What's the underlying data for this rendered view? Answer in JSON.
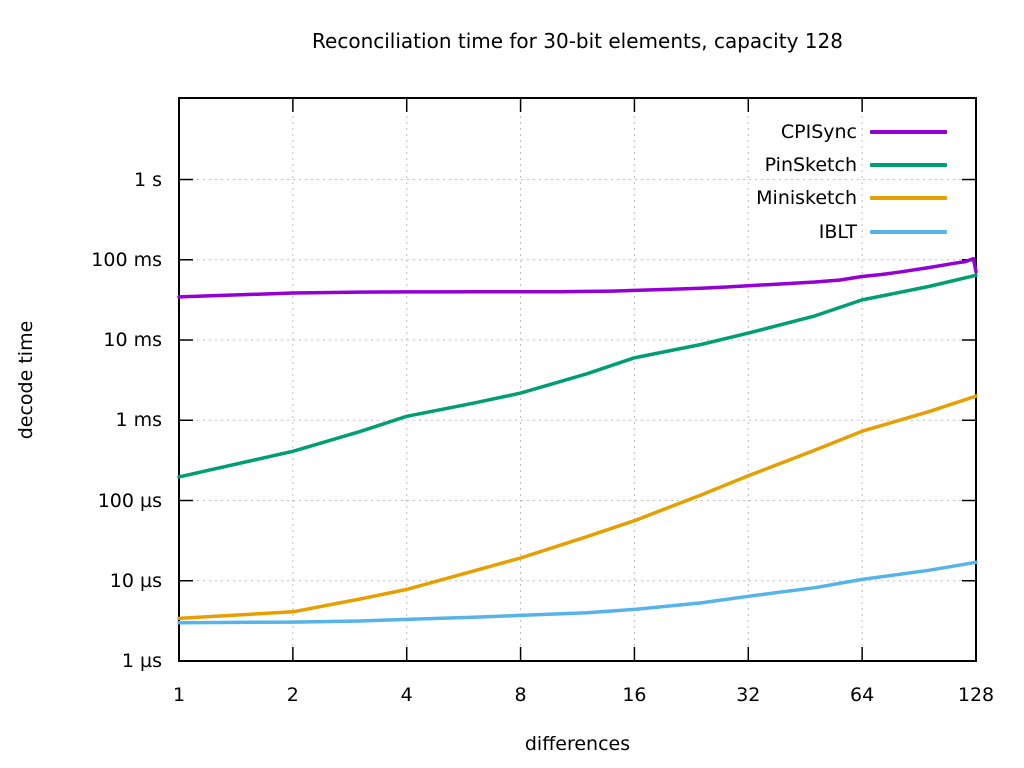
{
  "chart_data": {
    "type": "line",
    "title": "Reconciliation time for 30-bit elements, capacity 128",
    "xlabel": "differences",
    "ylabel": "decode time",
    "x_scale": "log2",
    "y_scale": "log10",
    "grid": true,
    "legend_position": "inside-top-right",
    "x_range": [
      1,
      128
    ],
    "y_range_seconds": [
      1e-06,
      10.4
    ],
    "x_ticks": [
      1,
      2,
      4,
      8,
      16,
      32,
      64,
      128
    ],
    "x_tick_labels": [
      "1",
      "2",
      "4",
      "8",
      "16",
      "32",
      "64",
      "128"
    ],
    "y_ticks": [
      {
        "label": "1 s",
        "seconds": 1
      },
      {
        "label": "100 ms",
        "seconds": 0.1
      },
      {
        "label": "10 ms",
        "seconds": 0.01
      },
      {
        "label": "1 ms",
        "seconds": 0.001
      },
      {
        "label": "100 µs",
        "seconds": 0.0001
      },
      {
        "label": "10 µs",
        "seconds": 1e-05
      },
      {
        "label": "1 µs",
        "seconds": 1e-06
      }
    ],
    "series": [
      {
        "name": "CPISync",
        "color": "#9400d3",
        "points": [
          [
            1,
            0.0345
          ],
          [
            2,
            0.0385
          ],
          [
            3,
            0.0395
          ],
          [
            4,
            0.0398
          ],
          [
            5,
            0.0398
          ],
          [
            6,
            0.0399
          ],
          [
            8,
            0.04
          ],
          [
            10,
            0.04
          ],
          [
            12,
            0.0403
          ],
          [
            14,
            0.0407
          ],
          [
            16,
            0.0415
          ],
          [
            20,
            0.0428
          ],
          [
            24,
            0.0442
          ],
          [
            28,
            0.0458
          ],
          [
            32,
            0.0475
          ],
          [
            40,
            0.0503
          ],
          [
            48,
            0.0528
          ],
          [
            56,
            0.056
          ],
          [
            64,
            0.0618
          ],
          [
            72,
            0.0655
          ],
          [
            80,
            0.07
          ],
          [
            96,
            0.08
          ],
          [
            112,
            0.0905
          ],
          [
            120,
            0.095
          ],
          [
            126,
            0.103
          ],
          [
            128,
            0.071
          ]
        ]
      },
      {
        "name": "PinSketch",
        "color": "#009e73",
        "points": [
          [
            1,
            0.000197
          ],
          [
            2,
            0.00041
          ],
          [
            3,
            0.00072
          ],
          [
            4,
            0.00112
          ],
          [
            6,
            0.00163
          ],
          [
            8,
            0.00218
          ],
          [
            12,
            0.0038
          ],
          [
            16,
            0.006
          ],
          [
            24,
            0.0088
          ],
          [
            32,
            0.0122
          ],
          [
            48,
            0.02
          ],
          [
            64,
            0.0316
          ],
          [
            96,
            0.0465
          ],
          [
            128,
            0.064
          ]
        ]
      },
      {
        "name": "Minisketch",
        "color": "#e69f00",
        "points": [
          [
            1,
            3.4e-06
          ],
          [
            2,
            4.1e-06
          ],
          [
            3,
            5.9e-06
          ],
          [
            4,
            7.8e-06
          ],
          [
            6,
            1.32e-05
          ],
          [
            8,
            1.92e-05
          ],
          [
            12,
            3.55e-05
          ],
          [
            16,
            5.6e-05
          ],
          [
            24,
            0.000117
          ],
          [
            32,
            0.000203
          ],
          [
            48,
            0.000425
          ],
          [
            64,
            0.00073
          ],
          [
            96,
            0.00128
          ],
          [
            128,
            0.002
          ]
        ]
      },
      {
        "name": "IBLT",
        "color": "#56b4e9",
        "points": [
          [
            1,
            3e-06
          ],
          [
            2,
            3.05e-06
          ],
          [
            3,
            3.15e-06
          ],
          [
            4,
            3.3e-06
          ],
          [
            6,
            3.5e-06
          ],
          [
            8,
            3.7e-06
          ],
          [
            12,
            4e-06
          ],
          [
            16,
            4.4e-06
          ],
          [
            24,
            5.3e-06
          ],
          [
            32,
            6.4e-06
          ],
          [
            48,
            8.2e-06
          ],
          [
            64,
            1.04e-05
          ],
          [
            96,
            1.35e-05
          ],
          [
            128,
            1.7e-05
          ]
        ]
      }
    ]
  }
}
